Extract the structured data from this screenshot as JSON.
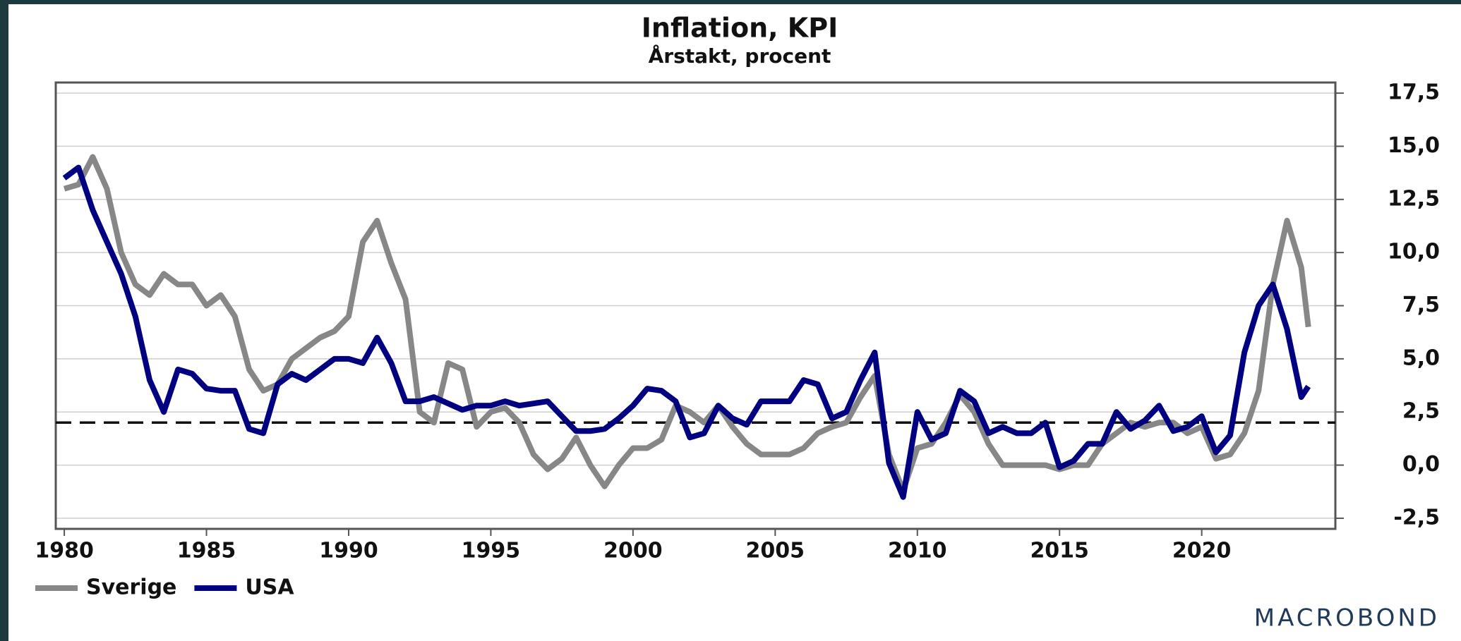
{
  "chart_data": {
    "type": "line",
    "title": "Inflation, KPI",
    "subtitle": "Årstakt, procent",
    "logo": "MACROBOND",
    "x": [
      1980.0,
      1980.5,
      1981.0,
      1981.5,
      1982.0,
      1982.5,
      1983.0,
      1983.5,
      1984.0,
      1984.5,
      1985.0,
      1985.5,
      1986.0,
      1986.5,
      1987.0,
      1987.5,
      1988.0,
      1988.5,
      1989.0,
      1989.5,
      1990.0,
      1990.5,
      1991.0,
      1991.5,
      1992.0,
      1992.5,
      1993.0,
      1993.5,
      1994.0,
      1994.5,
      1995.0,
      1995.5,
      1996.0,
      1996.5,
      1997.0,
      1997.5,
      1998.0,
      1998.5,
      1999.0,
      1999.5,
      2000.0,
      2000.5,
      2001.0,
      2001.5,
      2002.0,
      2002.5,
      2003.0,
      2003.5,
      2004.0,
      2004.5,
      2005.0,
      2005.5,
      2006.0,
      2006.5,
      2007.0,
      2007.5,
      2008.0,
      2008.5,
      2009.0,
      2009.5,
      2010.0,
      2010.5,
      2011.0,
      2011.5,
      2012.0,
      2012.5,
      2013.0,
      2013.5,
      2014.0,
      2014.5,
      2015.0,
      2015.5,
      2016.0,
      2016.5,
      2017.0,
      2017.5,
      2018.0,
      2018.5,
      2019.0,
      2019.5,
      2020.0,
      2020.5,
      2021.0,
      2021.5,
      2022.0,
      2022.5,
      2023.0,
      2023.5,
      2023.75
    ],
    "series": [
      {
        "name": "Sverige",
        "color": "#878787",
        "values": [
          13.0,
          13.2,
          14.5,
          13.0,
          10.0,
          8.5,
          8.0,
          9.0,
          8.5,
          8.5,
          7.5,
          8.0,
          7.0,
          4.5,
          3.5,
          3.8,
          5.0,
          5.5,
          6.0,
          6.3,
          7.0,
          10.5,
          11.5,
          9.5,
          7.8,
          2.5,
          2.0,
          4.8,
          4.5,
          1.8,
          2.5,
          2.7,
          2.0,
          0.5,
          -0.2,
          0.3,
          1.3,
          0.0,
          -1.0,
          0.0,
          0.8,
          0.8,
          1.2,
          2.8,
          2.5,
          2.0,
          2.8,
          1.8,
          1.0,
          0.5,
          0.5,
          0.5,
          0.8,
          1.5,
          1.8,
          2.0,
          3.2,
          4.2,
          0.5,
          -1.2,
          0.8,
          1.0,
          2.0,
          3.3,
          2.5,
          1.0,
          0.0,
          0.0,
          0.0,
          0.0,
          -0.2,
          0.0,
          0.0,
          1.0,
          1.5,
          2.0,
          1.8,
          2.0,
          2.0,
          1.5,
          1.8,
          0.3,
          0.5,
          1.5,
          3.5,
          8.5,
          11.5,
          9.3,
          6.5
        ]
      },
      {
        "name": "USA",
        "color": "#000080",
        "values": [
          13.5,
          14.0,
          12.0,
          10.5,
          9.0,
          7.0,
          4.0,
          2.5,
          4.5,
          4.3,
          3.6,
          3.5,
          3.5,
          1.7,
          1.5,
          3.8,
          4.3,
          4.0,
          4.5,
          5.0,
          5.0,
          4.8,
          6.0,
          4.8,
          3.0,
          3.0,
          3.2,
          2.9,
          2.6,
          2.8,
          2.8,
          3.0,
          2.8,
          2.9,
          3.0,
          2.3,
          1.6,
          1.6,
          1.7,
          2.2,
          2.8,
          3.6,
          3.5,
          3.0,
          1.3,
          1.5,
          2.8,
          2.2,
          1.9,
          3.0,
          3.0,
          3.0,
          4.0,
          3.8,
          2.2,
          2.5,
          4.0,
          5.3,
          0.1,
          -1.5,
          2.5,
          1.2,
          1.5,
          3.5,
          3.0,
          1.5,
          1.8,
          1.5,
          1.5,
          2.0,
          -0.1,
          0.2,
          1.0,
          1.0,
          2.5,
          1.7,
          2.1,
          2.8,
          1.6,
          1.8,
          2.3,
          0.6,
          1.4,
          5.3,
          7.5,
          8.5,
          6.4,
          3.2,
          3.7
        ]
      }
    ],
    "xlim": [
      1979.7,
      2024.7
    ],
    "xticks": [
      1980,
      1985,
      1990,
      1995,
      2000,
      2005,
      2010,
      2015,
      2020
    ],
    "ylim": [
      -3.0,
      18.0
    ],
    "yticks": [
      {
        "value": -2.5,
        "label": "-2,5"
      },
      {
        "value": 0,
        "label": "0,0"
      },
      {
        "value": 2.5,
        "label": "2,5"
      },
      {
        "value": 5,
        "label": "5,0"
      },
      {
        "value": 7.5,
        "label": "7,5"
      },
      {
        "value": 10,
        "label": "10,0"
      },
      {
        "value": 12.5,
        "label": "12,5"
      },
      {
        "value": 15,
        "label": "15,0"
      },
      {
        "value": 17.5,
        "label": "17,5"
      }
    ],
    "reference_line": 2,
    "grid": true,
    "legend": "bottom-left"
  }
}
